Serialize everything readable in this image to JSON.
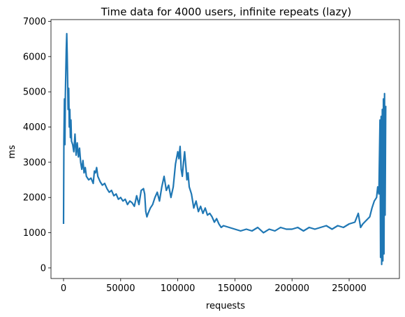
{
  "chart_data": {
    "type": "line",
    "title": "Time data for 4000 users, infinite repeats (lazy)",
    "xlabel": "requests",
    "ylabel": "ms",
    "xlim": [
      -11000,
      294000
    ],
    "ylim": [
      -300,
      7050
    ],
    "x_ticks": [
      0,
      50000,
      100000,
      150000,
      200000,
      250000
    ],
    "y_ticks": [
      0,
      1000,
      2000,
      3000,
      4000,
      5000,
      6000,
      7000
    ],
    "grid": false,
    "legend": "none",
    "series_color": "#1f77b4",
    "series": [
      {
        "x": [
          0,
          300,
          800,
          1200,
          1600,
          2000,
          2400,
          2800,
          3200,
          3600,
          4000,
          4500,
          5000,
          5500,
          6000,
          6500,
          7000,
          8000,
          9000,
          10000,
          11000,
          12000,
          13000,
          14000,
          15000,
          16000,
          17000,
          18000,
          19000,
          20000,
          22000,
          24000,
          26000,
          27000,
          28000,
          29000,
          30000,
          32000,
          34000,
          36000,
          38000,
          40000,
          42000,
          44000,
          46000,
          48000,
          50000,
          52000,
          54000,
          56000,
          58000,
          60000,
          62000,
          64000,
          66000,
          68000,
          70000,
          71000,
          72000,
          73000,
          74000,
          76000,
          78000,
          80000,
          82000,
          84000,
          86000,
          88000,
          90000,
          92000,
          94000,
          96000,
          98000,
          100000,
          101000,
          102000,
          103000,
          104000,
          105000,
          106000,
          107000,
          108000,
          109000,
          110000,
          112000,
          114000,
          116000,
          118000,
          120000,
          122000,
          124000,
          126000,
          128000,
          130000,
          132000,
          134000,
          136000,
          138000,
          140000,
          145000,
          150000,
          155000,
          160000,
          165000,
          170000,
          175000,
          180000,
          185000,
          190000,
          195000,
          200000,
          205000,
          210000,
          215000,
          220000,
          225000,
          230000,
          235000,
          240000,
          245000,
          250000,
          255000,
          258000,
          260000,
          262000,
          265000,
          268000,
          270000,
          272000,
          274000,
          275000,
          276000,
          277000,
          277500,
          278000,
          278500,
          279000,
          279500,
          280000,
          280500,
          281000,
          281500,
          282000
        ],
        "y": [
          1250,
          3600,
          4800,
          3500,
          4900,
          5600,
          6200,
          6650,
          6100,
          5300,
          4500,
          5100,
          4000,
          4500,
          3700,
          4200,
          3600,
          3500,
          3300,
          3800,
          3200,
          3550,
          3150,
          3400,
          3000,
          2800,
          3050,
          2700,
          2850,
          2600,
          2500,
          2550,
          2400,
          2750,
          2700,
          2850,
          2600,
          2450,
          2350,
          2400,
          2250,
          2150,
          2200,
          2050,
          2100,
          1950,
          2000,
          1900,
          1950,
          1800,
          1900,
          1850,
          1750,
          2050,
          1800,
          2200,
          2250,
          2100,
          1600,
          1450,
          1550,
          1700,
          1800,
          2000,
          2150,
          1900,
          2300,
          2600,
          2200,
          2350,
          2000,
          2300,
          2950,
          3300,
          3100,
          3450,
          2800,
          2600,
          3000,
          3300,
          2900,
          2500,
          2700,
          2300,
          2100,
          1700,
          1900,
          1600,
          1750,
          1550,
          1700,
          1500,
          1550,
          1450,
          1300,
          1400,
          1250,
          1150,
          1200,
          1150,
          1100,
          1050,
          1100,
          1050,
          1150,
          1000,
          1100,
          1050,
          1150,
          1100,
          1100,
          1150,
          1050,
          1150,
          1100,
          1150,
          1200,
          1100,
          1200,
          1150,
          1250,
          1300,
          1550,
          1150,
          1250,
          1350,
          1450,
          1700,
          1900,
          2000,
          2300,
          2100,
          4200,
          300,
          4300,
          100,
          4500,
          200,
          4800,
          400,
          4950,
          1500,
          4600
        ]
      }
    ]
  }
}
